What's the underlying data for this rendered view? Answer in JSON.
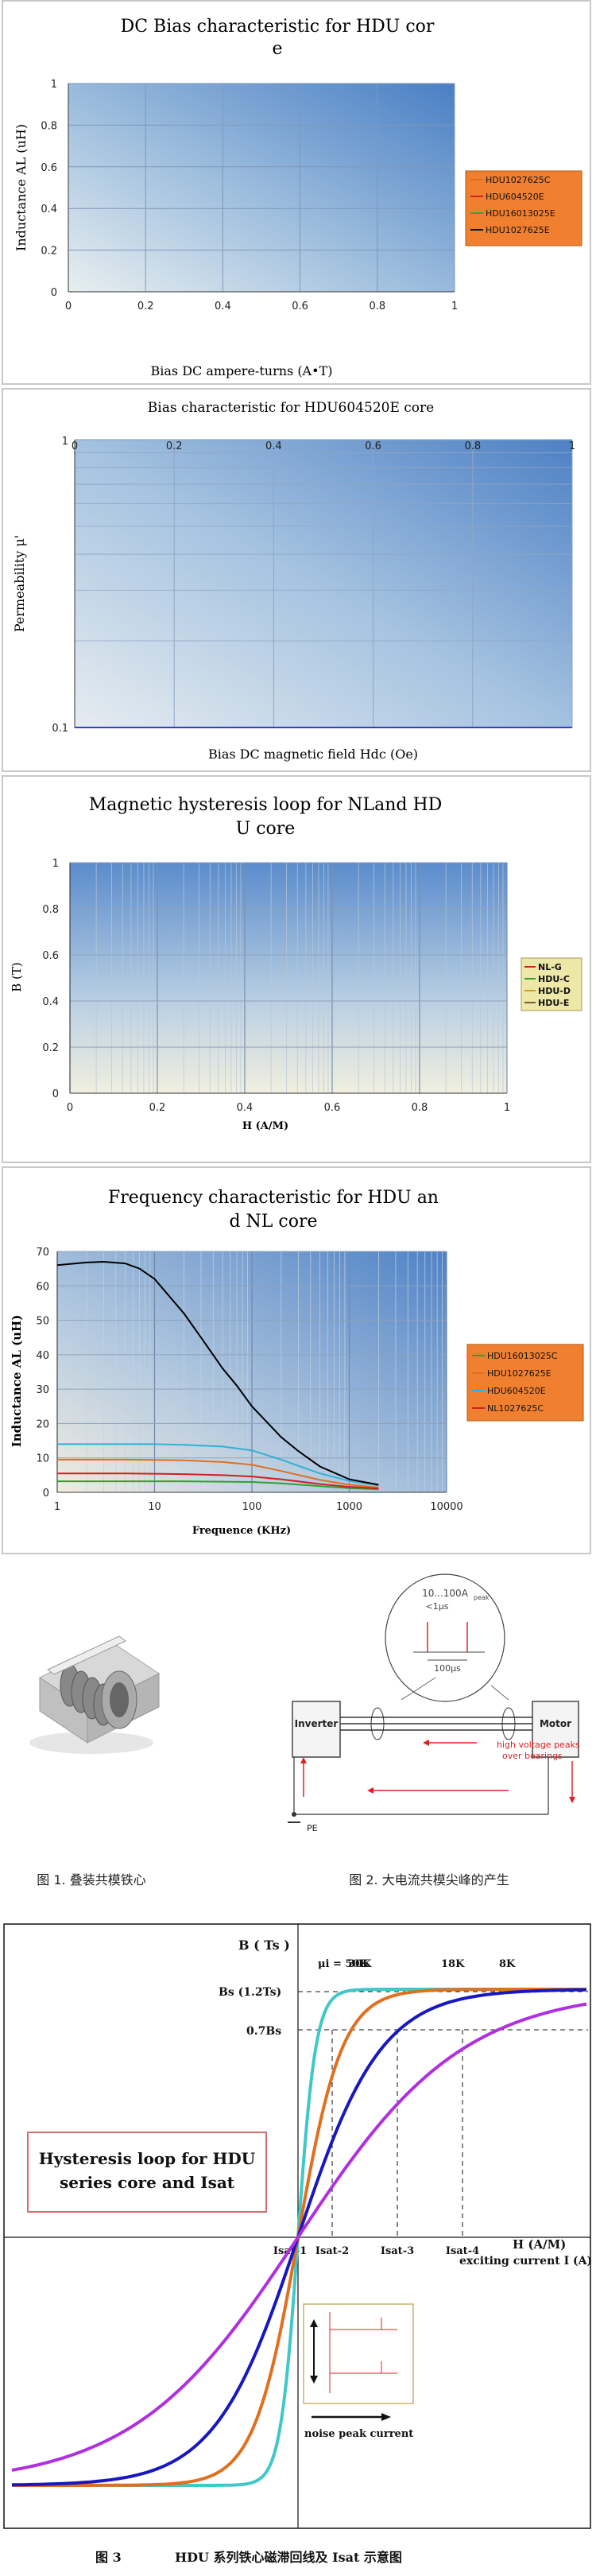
{
  "chart_data": [
    {
      "type": "line",
      "title": "DC Bias  characteristic for HDU core",
      "title_lines": [
        "DC Bias  characteristic for HDU cor",
        "e"
      ],
      "ylabel": "Inductance   AL  (uH)",
      "xlabel": "Bias  DC ampere-turns      (A•T)",
      "xlim": [
        0,
        1
      ],
      "ylim": [
        0,
        1
      ],
      "x_ticks": [
        "0",
        "0.2",
        "0.4",
        "0.6",
        "0.8",
        "1"
      ],
      "y_ticks": [
        "0",
        "0.2",
        "0.4",
        "0.6",
        "0.8",
        "1"
      ],
      "grid": true,
      "legend_placement": "right",
      "series": [
        {
          "name": "HDU1027625C",
          "color": "#e07020",
          "values": []
        },
        {
          "name": "HDU604520E",
          "color": "#d02020",
          "values": []
        },
        {
          "name": "HDU16013025E",
          "color": "#40a040",
          "values": []
        },
        {
          "name": "HDU1027625E",
          "color": "#111111",
          "values": []
        }
      ]
    },
    {
      "type": "line",
      "title": "Bias characteristic for HDU604520E core",
      "ylabel": "Permeability  μ'",
      "xlabel": "Bias DC magnetic field  Hdc   (Oe)",
      "xlim": [
        0,
        1
      ],
      "ylim": [
        0.1,
        1
      ],
      "y_scale": "log",
      "x_ticks": [
        "0",
        "0.2",
        "0.4",
        "0.6",
        "0.8",
        "1"
      ],
      "y_ticks": [
        "0.1",
        "1"
      ],
      "grid": true,
      "series": []
    },
    {
      "type": "line",
      "title": "Magnetic hysteresis loop for NLand HDU  core",
      "title_lines": [
        "Magnetic hysteresis loop for NLand HD",
        "U  core"
      ],
      "ylabel": "B   (T)",
      "xlabel": "H      (A/M)",
      "xlim": [
        0,
        1
      ],
      "ylim": [
        0,
        1
      ],
      "x_ticks": [
        "0",
        "0.2",
        "0.4",
        "0.6",
        "0.8",
        "1"
      ],
      "y_ticks": [
        "0",
        "0.2",
        "0.4",
        "0.6",
        "0.8",
        "1"
      ],
      "grid": true,
      "legend_placement": "right",
      "series": [
        {
          "name": "NL-G",
          "color": "#d02020",
          "values": []
        },
        {
          "name": "HDU-C",
          "color": "#30a030",
          "values": []
        },
        {
          "name": "HDU-D",
          "color": "#c8a020",
          "values": []
        },
        {
          "name": "HDU-E",
          "color": "#7a5a3a",
          "values": []
        }
      ]
    },
    {
      "type": "line",
      "title": "Frequency characteristic for HDU and NL core",
      "title_lines": [
        "Frequency characteristic for HDU an",
        "d NL core"
      ],
      "ylabel": "Inductance    AL    (uH)",
      "xlabel": "Frequence      (KHz)",
      "x_scale": "log",
      "xlim": [
        1,
        10000
      ],
      "ylim": [
        0,
        70
      ],
      "x_ticks": [
        "1",
        "10",
        "100",
        "1000",
        "10000"
      ],
      "y_ticks": [
        "0",
        "10",
        "20",
        "30",
        "40",
        "50",
        "60",
        "70"
      ],
      "grid": true,
      "legend_placement": "right",
      "series": [
        {
          "name": "HDU16013025C",
          "color": "#30a030",
          "x": [
            1,
            2,
            5,
            10,
            20,
            50,
            100,
            200,
            500,
            1000,
            2000
          ],
          "values": [
            3.2,
            3.2,
            3.2,
            3.2,
            3.2,
            3.1,
            3.0,
            2.6,
            1.8,
            1.2,
            0.9
          ]
        },
        {
          "name": "HDU1027625E",
          "color": "#e07020",
          "x": [
            1,
            2,
            5,
            10,
            20,
            50,
            100,
            200,
            500,
            1000,
            2000
          ],
          "values": [
            9.5,
            9.5,
            9.5,
            9.4,
            9.3,
            8.8,
            8.0,
            6.2,
            3.6,
            2.2,
            1.4
          ]
        },
        {
          "name": "HDU604520E",
          "color": "#30b0d8",
          "x": [
            1,
            2,
            5,
            10,
            20,
            50,
            100,
            200,
            500,
            1000,
            2000
          ],
          "values": [
            14,
            14,
            14,
            14,
            13.8,
            13.3,
            12.2,
            9.5,
            5.5,
            3.3,
            2.0
          ]
        },
        {
          "name": "NL1027625C",
          "color": "#d02020",
          "x": [
            1,
            2,
            5,
            10,
            20,
            50,
            100,
            200,
            500,
            1000,
            2000
          ],
          "values": [
            5.5,
            5.5,
            5.5,
            5.4,
            5.3,
            5.0,
            4.6,
            3.8,
            2.4,
            1.6,
            1.1
          ]
        },
        {
          "name": "",
          "color": "#000000",
          "x": [
            1,
            2,
            3,
            5,
            7,
            10,
            20,
            30,
            50,
            70,
            100,
            200,
            300,
            500,
            1000,
            2000
          ],
          "values": [
            66,
            66.8,
            67,
            66.5,
            65,
            62,
            52,
            45,
            36,
            31,
            25,
            16,
            12,
            7.5,
            3.8,
            2.2
          ]
        }
      ]
    },
    {
      "type": "line",
      "title": "",
      "ylabel": "B ( Ts )",
      "xlabel": "H (A/M)",
      "xlabel2": "exciting current  I (A)",
      "y_marks": [
        "Bs (1.2Ts)",
        "0.7Bs"
      ],
      "x_marks": [
        "Isat-1",
        "Isat-2",
        "Isat-3",
        "Isat-4"
      ],
      "series": [
        {
          "name": "μi = 50K",
          "color": "#40c8c8",
          "values": []
        },
        {
          "name": "30K",
          "color": "#e07020",
          "values": []
        },
        {
          "name": "18K",
          "color": "#1818c0",
          "values": []
        },
        {
          "name": "8K",
          "color": "#b030e0",
          "values": []
        }
      ]
    }
  ],
  "photo_section": {
    "caption_1": "图 1. 叠装共模铁心",
    "caption_2": "图 2. 大电流共模尖峰的产生",
    "inverter_label": "Inverter",
    "motor_label": "Motor",
    "pe_label": "PE",
    "peak_label_1": "high voltage peaks",
    "peak_label_2": "over bearings",
    "pulse_amp": "10...100A",
    "pulse_amp_sub": "peak",
    "pulse_width": "<1μs",
    "pulse_period": "100μs"
  },
  "hysteresis_section": {
    "box_line_1": "Hysteresis loop for HDU",
    "box_line_2": "series core and Isat",
    "noise_label": "noise peak current",
    "fig_number": "图 3",
    "fig_caption": "HDU 系列铁心磁滞回线及 Isat  示意图"
  }
}
